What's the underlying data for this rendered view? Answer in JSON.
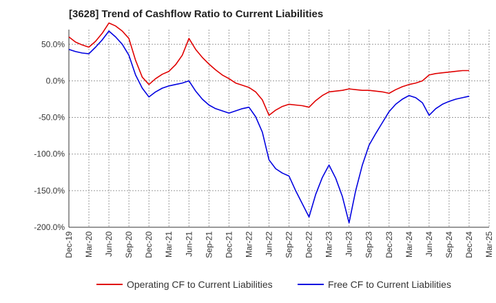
{
  "chart_data": {
    "type": "line",
    "title": "[3628]  Trend of Cashflow Ratio to Current Liabilities",
    "xlabel": "",
    "ylabel": "",
    "ylim": [
      -200,
      70
    ],
    "y_ticks": [
      "50.0%",
      "0.0%",
      "-50.0%",
      "-100.0%",
      "-150.0%",
      "-200.0%"
    ],
    "y_tick_values": [
      50,
      0,
      -50,
      -100,
      -150,
      -200
    ],
    "x_tick_labels": [
      "Dec-19",
      "Mar-20",
      "Jun-20",
      "Sep-20",
      "Dec-20",
      "Mar-21",
      "Jun-21",
      "Sep-21",
      "Dec-21",
      "Mar-22",
      "Jun-22",
      "Sep-22",
      "Dec-22",
      "Mar-23",
      "Jun-23",
      "Sep-23",
      "Dec-23",
      "Mar-24",
      "Jun-24",
      "Sep-24",
      "Dec-24",
      "Mar-25"
    ],
    "x": [
      "Dec-19",
      "Jan-20",
      "Feb-20",
      "Mar-20",
      "Apr-20",
      "May-20",
      "Jun-20",
      "Jul-20",
      "Aug-20",
      "Sep-20",
      "Oct-20",
      "Nov-20",
      "Dec-20",
      "Jan-21",
      "Feb-21",
      "Mar-21",
      "Apr-21",
      "May-21",
      "Jun-21",
      "Jul-21",
      "Aug-21",
      "Sep-21",
      "Oct-21",
      "Nov-21",
      "Dec-21",
      "Jan-22",
      "Feb-22",
      "Mar-22",
      "Apr-22",
      "May-22",
      "Jun-22",
      "Jul-22",
      "Aug-22",
      "Sep-22",
      "Oct-22",
      "Nov-22",
      "Dec-22",
      "Jan-23",
      "Feb-23",
      "Mar-23",
      "Apr-23",
      "May-23",
      "Jun-23",
      "Jul-23",
      "Aug-23",
      "Sep-23",
      "Oct-23",
      "Nov-23",
      "Dec-23",
      "Jan-24",
      "Feb-24",
      "Mar-24",
      "Apr-24",
      "May-24",
      "Jun-24",
      "Jul-24",
      "Aug-24",
      "Sep-24",
      "Oct-24",
      "Nov-24",
      "Dec-24"
    ],
    "series": [
      {
        "name": "Operating CF to Current Liabilities",
        "color": "#e00000",
        "values": [
          60,
          53,
          49,
          46,
          54,
          65,
          79,
          75,
          68,
          58,
          28,
          5,
          -5,
          3,
          9,
          13,
          22,
          35,
          58,
          43,
          32,
          23,
          15,
          8,
          3,
          -3,
          -6,
          -9,
          -15,
          -26,
          -47,
          -40,
          -35,
          -32,
          -33,
          -34,
          -36,
          -27,
          -20,
          -15,
          -14,
          -13,
          -11,
          -12,
          -13,
          -13,
          -14,
          -15,
          -17,
          -12,
          -8,
          -5,
          -3,
          0,
          8,
          10,
          11,
          12,
          13,
          14,
          14
        ]
      },
      {
        "name": "Free CF to Current Liabilities",
        "color": "#0000e0",
        "values": [
          43,
          40,
          38,
          37,
          46,
          56,
          68,
          60,
          50,
          35,
          8,
          -10,
          -22,
          -15,
          -10,
          -7,
          -5,
          -3,
          0,
          -14,
          -25,
          -33,
          -38,
          -41,
          -44,
          -41,
          -38,
          -36,
          -49,
          -70,
          -108,
          -120,
          -126,
          -130,
          -150,
          -168,
          -186,
          -155,
          -132,
          -115,
          -133,
          -158,
          -194,
          -150,
          -115,
          -88,
          -72,
          -57,
          -42,
          -32,
          -25,
          -20,
          -23,
          -30,
          -47,
          -38,
          -32,
          -28,
          -25,
          -23,
          -21
        ]
      }
    ],
    "grid": true,
    "legend_position": "bottom"
  }
}
